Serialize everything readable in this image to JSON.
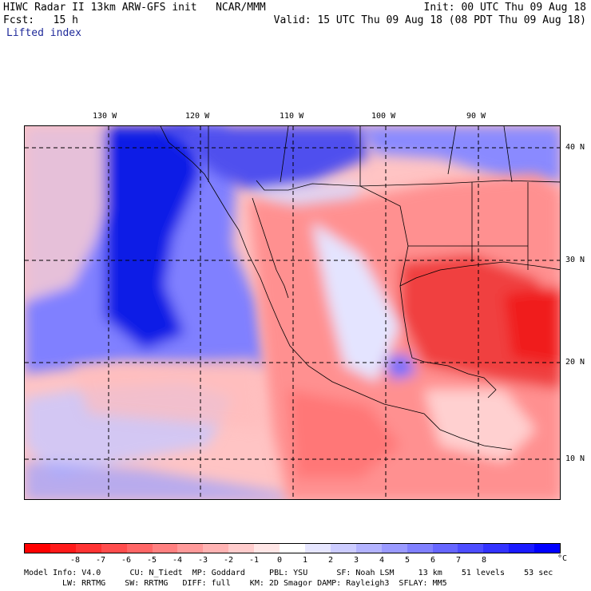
{
  "header": {
    "line1_left": "HIWC Radar II 13km ARW-GFS init   NCAR/MMM",
    "line1_right": "Init: 00 UTC Thu 09 Aug 18",
    "line2_left": "Fcst:   15 h",
    "line2_right": "Valid: 15 UTC Thu 09 Aug 18 (08 PDT Thu 09 Aug 18)",
    "field": "Lifted index"
  },
  "longitude_labels": [
    "130 W",
    "120 W",
    "110 W",
    "100 W",
    "90 W"
  ],
  "latitude_labels": [
    "40 N",
    "30 N",
    "20 N",
    "10 N"
  ],
  "colorbar": {
    "colors": [
      "#ff0000",
      "#ff1a1a",
      "#ff3333",
      "#ff4d4d",
      "#ff6666",
      "#ff8080",
      "#ff9a9a",
      "#ffb3b3",
      "#ffcccc",
      "#ffe6e6",
      "#ffffff",
      "#e6e6ff",
      "#ccccff",
      "#b3b3ff",
      "#9a9aff",
      "#8080ff",
      "#6666ff",
      "#4d4dff",
      "#3333ff",
      "#1a1aff",
      "#0000ff"
    ],
    "labels": [
      "-8",
      "-7",
      "-6",
      "-5",
      "-4",
      "-3",
      "-2",
      "-1",
      "0",
      "1",
      "2",
      "3",
      "4",
      "5",
      "6",
      "7",
      "8"
    ],
    "unit": "°C"
  },
  "model_info": {
    "line1": "Model Info: V4.0      CU: N_Tiedt  MP: Goddard     PBL: YSU      SF: Noah LSM     13 km    51 levels    53 sec",
    "line2": "LW: RRTMG    SW: RRTMG   DIFF: full    KM: 2D Smagor DAMP: Rayleigh3  SFLAY: MM5"
  },
  "colors": {
    "strong_blue": "#0a1ee6",
    "strong_red": "#f01e1e"
  }
}
